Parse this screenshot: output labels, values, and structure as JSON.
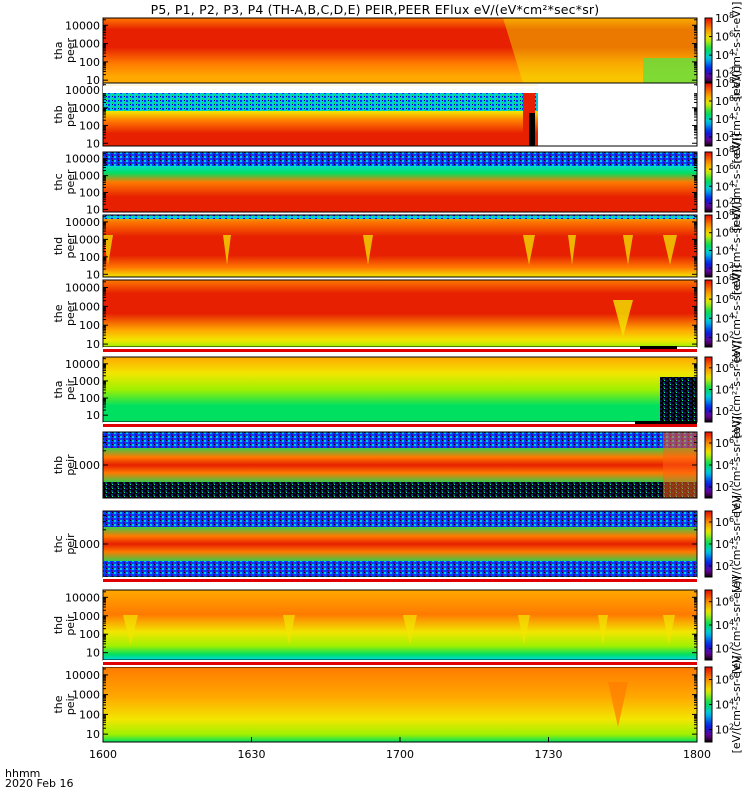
{
  "chart_data": {
    "type": "heatmap",
    "title": "P5, P1, P2, P3, P4 (TH-A,B,C,D,E) PEIR,PEER EFlux eV/(eV*cm²*sec*sr)",
    "x_tick_labels": [
      "1600",
      "1630",
      "1700",
      "1730",
      "1800"
    ],
    "x_range": [
      "1600",
      "1800"
    ],
    "footer_lines": [
      "hhmm",
      "2020 Feb 16"
    ],
    "colorbar_label": "[eV/(cm²-s-sr-eV)]",
    "colorbar_powers": [
      "2",
      "4",
      "6",
      "8"
    ],
    "y_scale": "log",
    "panels": [
      {
        "probe": "tha",
        "species": "peer",
        "label_lines": [
          "tha",
          "peer"
        ],
        "y_ticks": [
          "10",
          "100",
          "1000",
          "10000"
        ],
        "y_range": [
          7,
          25000
        ],
        "cb_range_log": [
          1,
          8
        ]
      },
      {
        "probe": "thb",
        "species": "peer",
        "label_lines": [
          "thb",
          "peer"
        ],
        "y_ticks": [
          "10",
          "100",
          "1000",
          "10000"
        ],
        "y_range": [
          7,
          25000
        ],
        "cb_range_log": [
          1,
          8
        ]
      },
      {
        "probe": "thc",
        "species": "peer",
        "label_lines": [
          "thc",
          "peer"
        ],
        "y_ticks": [
          "10",
          "100",
          "1000",
          "10000"
        ],
        "y_range": [
          7,
          25000
        ],
        "cb_range_log": [
          1,
          8
        ]
      },
      {
        "probe": "thd",
        "species": "peer",
        "label_lines": [
          "thd",
          "peer"
        ],
        "y_ticks": [
          "10",
          "100",
          "1000",
          "10000"
        ],
        "y_range": [
          7,
          25000
        ],
        "cb_range_log": [
          1,
          8
        ]
      },
      {
        "probe": "the",
        "species": "peer",
        "label_lines": [
          "the",
          "peer"
        ],
        "y_ticks": [
          "10",
          "100",
          "1000",
          "10000"
        ],
        "y_range": [
          7,
          25000
        ],
        "cb_range_log": [
          1,
          8
        ]
      },
      {
        "probe": "tha",
        "species": "peir",
        "label_lines": [
          "tha",
          "peir"
        ],
        "y_ticks": [
          "10",
          "100",
          "1000",
          "10000"
        ],
        "y_range": [
          4,
          25000
        ],
        "cb_range_log": [
          1,
          7
        ]
      },
      {
        "probe": "thb",
        "species": "peir",
        "label_lines": [
          "thb",
          "peir"
        ],
        "y_ticks": [
          "1000"
        ],
        "y_range": [
          200,
          5000
        ],
        "cb_range_log": [
          1,
          7
        ]
      },
      {
        "probe": "thc",
        "species": "peir",
        "label_lines": [
          "thc",
          "peir"
        ],
        "y_ticks": [
          "1000"
        ],
        "y_range": [
          200,
          5000
        ],
        "cb_range_log": [
          1,
          7
        ]
      },
      {
        "probe": "thd",
        "species": "peir",
        "label_lines": [
          "thd",
          "peir"
        ],
        "y_ticks": [
          "10",
          "100",
          "1000",
          "10000"
        ],
        "y_range": [
          4,
          25000
        ],
        "cb_range_log": [
          1,
          7
        ]
      },
      {
        "probe": "the",
        "species": "peir",
        "label_lines": [
          "the",
          "peir"
        ],
        "y_ticks": [
          "10",
          "100",
          "1000",
          "10000"
        ],
        "y_range": [
          4,
          25000
        ],
        "cb_range_log": [
          1,
          7
        ]
      }
    ]
  }
}
